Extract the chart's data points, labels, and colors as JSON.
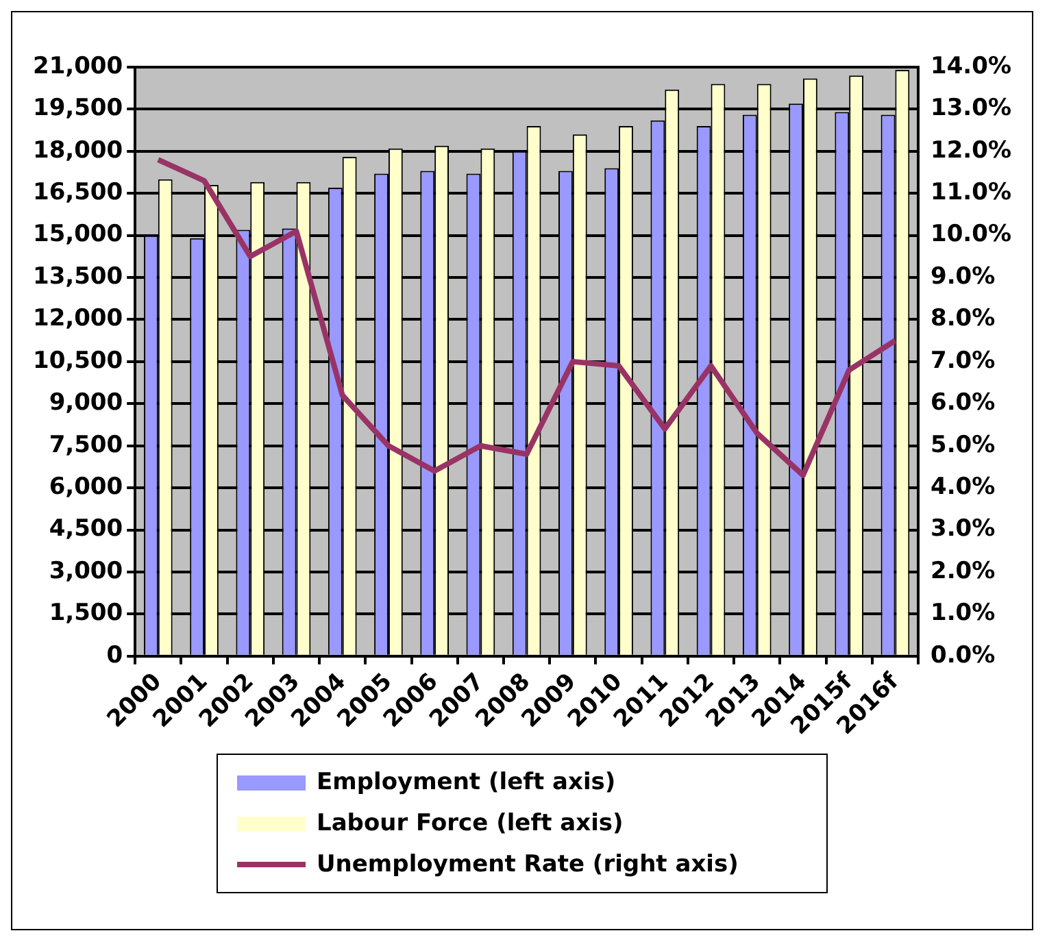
{
  "chart_data": {
    "type": "bar",
    "categories": [
      "2000",
      "2001",
      "2002",
      "2003",
      "2004",
      "2005",
      "2006",
      "2007",
      "2008",
      "2009",
      "2010",
      "2011",
      "2012",
      "2013",
      "2014",
      "2015f",
      "2016f"
    ],
    "series": [
      {
        "name": "Employment (left axis)",
        "color": "#9999ff",
        "values": [
          15000,
          14900,
          15200,
          15250,
          16700,
          17200,
          17300,
          17200,
          18000,
          17300,
          17400,
          19100,
          18900,
          19300,
          19700,
          19400,
          19300
        ]
      },
      {
        "name": "Labour Force (left axis)",
        "color": "#ffffcc",
        "values": [
          17000,
          16800,
          16900,
          16900,
          17800,
          18100,
          18200,
          18100,
          18900,
          18600,
          18900,
          20200,
          20400,
          20400,
          20600,
          20700,
          20900
        ]
      },
      {
        "name": "Unemployment Rate (right axis)",
        "type": "line",
        "axis": "y2",
        "color": "#993366",
        "values": [
          11.8,
          11.3,
          9.5,
          10.1,
          6.2,
          5.0,
          4.4,
          5.0,
          4.8,
          7.0,
          6.9,
          5.4,
          6.9,
          5.3,
          4.3,
          6.8,
          7.5
        ]
      }
    ],
    "ylim": [
      0,
      21000
    ],
    "yticks": [
      0,
      {
        "value": 1500,
        "label": "1,500"
      },
      {
        "value": 3000,
        "label": "3,000"
      },
      {
        "value": 4500,
        "label": "4,500"
      },
      {
        "value": 6000,
        "label": "6,000"
      },
      {
        "value": 7500,
        "label": "7,500"
      },
      {
        "value": 9000,
        "label": "9,000"
      },
      {
        "value": 10500,
        "label": "10,500"
      },
      {
        "value": 12000,
        "label": "12,000"
      },
      {
        "value": 13500,
        "label": "13,500"
      },
      {
        "value": 15000,
        "label": "15,000"
      },
      {
        "value": 16500,
        "label": "16,500"
      },
      {
        "value": 18000,
        "label": "18,000"
      },
      {
        "value": 19500,
        "label": "19,500"
      },
      {
        "value": 21000,
        "label": "21,000"
      }
    ],
    "y2lim": [
      0,
      14
    ],
    "y2ticks": [
      {
        "value": 0,
        "label": "0.0%"
      },
      {
        "value": 1,
        "label": "1.0%"
      },
      {
        "value": 2,
        "label": "2.0%"
      },
      {
        "value": 3,
        "label": "3.0%"
      },
      {
        "value": 4,
        "label": "4.0%"
      },
      {
        "value": 5,
        "label": "5.0%"
      },
      {
        "value": 6,
        "label": "6.0%"
      },
      {
        "value": 7,
        "label": "7.0%"
      },
      {
        "value": 8,
        "label": "8.0%"
      },
      {
        "value": 9,
        "label": "9.0%"
      },
      {
        "value": 10,
        "label": "10.0%"
      },
      {
        "value": 11,
        "label": "11.0%"
      },
      {
        "value": 12,
        "label": "12.0%"
      },
      {
        "value": 13,
        "label": "13.0%"
      },
      {
        "value": 14,
        "label": "14.0%"
      }
    ],
    "grid": "y",
    "legend": "bottom",
    "marker": "none"
  }
}
